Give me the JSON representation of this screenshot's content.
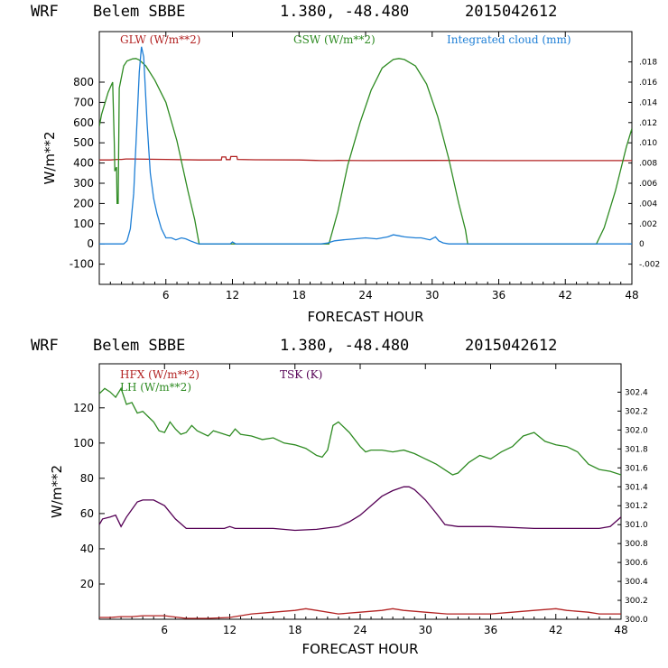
{
  "chart_data": [
    {
      "type": "line",
      "header": {
        "model": "WRF",
        "station": "Belem SBBE",
        "coords": "1.380, -48.480",
        "run": "2015042612"
      },
      "xlabel": "FORECAST HOUR",
      "ylabel": "W/m**2",
      "xlim": [
        0,
        48
      ],
      "ylim": [
        -200,
        1050
      ],
      "x_ticks": [
        "6",
        "12",
        "18",
        "24",
        "30",
        "36",
        "42",
        "48"
      ],
      "y_ticks": [
        "-100",
        "0",
        "100",
        "200",
        "300",
        "400",
        "500",
        "600",
        "700",
        "800"
      ],
      "y2lim": [
        -0.004,
        0.021
      ],
      "y2_ticks": [
        "-.002",
        "0",
        ".002",
        ".004",
        ".006",
        ".008",
        ".010",
        ".012",
        ".014",
        ".016",
        ".018"
      ],
      "series": [
        {
          "name": "GLW (W/m**2)",
          "color": "#b22222",
          "axis": "left",
          "points": [
            [
              0,
              415
            ],
            [
              1,
              415
            ],
            [
              1.6,
              418
            ],
            [
              2,
              418
            ],
            [
              2.4,
              420
            ],
            [
              3,
              420
            ],
            [
              6,
              418
            ],
            [
              9,
              415
            ],
            [
              10.5,
              415
            ],
            [
              11,
              415
            ],
            [
              11.05,
              430
            ],
            [
              11.4,
              430
            ],
            [
              11.45,
              417
            ],
            [
              11.8,
              417
            ],
            [
              11.85,
              432
            ],
            [
              12.4,
              432
            ],
            [
              12.45,
              418
            ],
            [
              14,
              416
            ],
            [
              18,
              415
            ],
            [
              19.5,
              413
            ],
            [
              20,
              412
            ],
            [
              21,
              412
            ],
            [
              21.5,
              413
            ],
            [
              24,
              412
            ],
            [
              30,
              413
            ],
            [
              36,
              412
            ],
            [
              42,
              412
            ],
            [
              48,
              412
            ]
          ]
        },
        {
          "name": "GSW (W/m**2)",
          "color": "#2e8b22",
          "axis": "left",
          "points": [
            [
              0,
              580
            ],
            [
              0.2,
              640
            ],
            [
              0.8,
              750
            ],
            [
              1.2,
              800
            ],
            [
              1.35,
              500
            ],
            [
              1.4,
              360
            ],
            [
              1.55,
              380
            ],
            [
              1.6,
              200
            ],
            [
              1.7,
              200
            ],
            [
              1.8,
              770
            ],
            [
              2.2,
              880
            ],
            [
              2.5,
              905
            ],
            [
              3,
              915
            ],
            [
              3.3,
              917
            ],
            [
              3.6,
              910
            ],
            [
              4.2,
              880
            ],
            [
              5,
              810
            ],
            [
              6,
              700
            ],
            [
              7,
              510
            ],
            [
              8,
              260
            ],
            [
              8.6,
              120
            ],
            [
              9,
              0
            ],
            [
              20.7,
              0
            ],
            [
              21.5,
              160
            ],
            [
              22.4,
              390
            ],
            [
              23.5,
              600
            ],
            [
              24.5,
              760
            ],
            [
              25.5,
              870
            ],
            [
              26.5,
              912
            ],
            [
              27,
              917
            ],
            [
              27.5,
              912
            ],
            [
              28.5,
              880
            ],
            [
              29.5,
              790
            ],
            [
              30.5,
              630
            ],
            [
              31.5,
              420
            ],
            [
              32.4,
              200
            ],
            [
              33,
              70
            ],
            [
              33.2,
              0
            ],
            [
              44.8,
              0
            ],
            [
              45.5,
              80
            ],
            [
              46.5,
              260
            ],
            [
              47.5,
              480
            ],
            [
              48,
              570
            ]
          ]
        },
        {
          "name": "Integrated cloud (mm)",
          "color": "#1e7fd6",
          "axis": "right",
          "points": [
            [
              0,
              0
            ],
            [
              1.5,
              0
            ],
            [
              2.2,
              0
            ],
            [
              2.5,
              0.0003
            ],
            [
              2.8,
              0.0015
            ],
            [
              3.1,
              0.005
            ],
            [
              3.35,
              0.011
            ],
            [
              3.6,
              0.017
            ],
            [
              3.8,
              0.0195
            ],
            [
              4,
              0.0185
            ],
            [
              4.3,
              0.012
            ],
            [
              4.6,
              0.007
            ],
            [
              4.9,
              0.0045
            ],
            [
              5.2,
              0.003
            ],
            [
              5.6,
              0.0015
            ],
            [
              6,
              0.0006
            ],
            [
              6.5,
              0.0006
            ],
            [
              6.9,
              0.0004
            ],
            [
              7.4,
              0.0006
            ],
            [
              7.8,
              0.0005
            ],
            [
              8.2,
              0.0003
            ],
            [
              8.8,
              5e-05
            ],
            [
              9,
              0
            ],
            [
              11.8,
              0
            ],
            [
              12,
              0.0002
            ],
            [
              12.3,
              0
            ],
            [
              20,
              0
            ],
            [
              20.6,
              0.0001
            ],
            [
              21.2,
              0.0003
            ],
            [
              22,
              0.0004
            ],
            [
              23,
              0.0005
            ],
            [
              24,
              0.0006
            ],
            [
              25,
              0.0005
            ],
            [
              26,
              0.0007
            ],
            [
              26.5,
              0.0009
            ],
            [
              27,
              0.0008
            ],
            [
              27.5,
              0.0007
            ],
            [
              28.5,
              0.0006
            ],
            [
              29,
              0.0006
            ],
            [
              29.8,
              0.0004
            ],
            [
              30.3,
              0.0007
            ],
            [
              30.6,
              0.0003
            ],
            [
              31,
              0.0001
            ],
            [
              31.5,
              0
            ],
            [
              48,
              0
            ]
          ]
        }
      ]
    },
    {
      "type": "line",
      "header": {
        "model": "WRF",
        "station": "Belem SBBE",
        "coords": "1.380, -48.480",
        "run": "2015042612"
      },
      "xlabel": "FORECAST HOUR",
      "ylabel": "W/m**2",
      "xlim": [
        0,
        48
      ],
      "ylim": [
        0,
        145
      ],
      "x_ticks": [
        "6",
        "12",
        "18",
        "24",
        "30",
        "36",
        "42",
        "48"
      ],
      "y_ticks": [
        "20",
        "40",
        "60",
        "80",
        "100",
        "120"
      ],
      "y2lim": [
        300.0,
        302.7
      ],
      "y2_ticks": [
        "300.0",
        "300.2",
        "300.4",
        "300.6",
        "300.8",
        "301.0",
        "301.2",
        "301.4",
        "301.6",
        "301.8",
        "302.0",
        "302.2",
        "302.4"
      ],
      "series": [
        {
          "name": "HFX (W/m**2)",
          "color": "#b22222",
          "axis": "left",
          "points": [
            [
              0,
              1
            ],
            [
              1,
              1
            ],
            [
              2,
              1.5
            ],
            [
              3,
              1.5
            ],
            [
              4,
              2
            ],
            [
              6,
              2
            ],
            [
              8,
              0.5
            ],
            [
              10,
              0.5
            ],
            [
              12,
              1
            ],
            [
              14,
              3
            ],
            [
              16,
              4
            ],
            [
              18,
              5
            ],
            [
              19,
              6
            ],
            [
              20,
              5
            ],
            [
              22,
              3
            ],
            [
              24,
              4
            ],
            [
              26,
              5
            ],
            [
              27,
              6
            ],
            [
              28,
              5
            ],
            [
              30,
              4
            ],
            [
              32,
              3
            ],
            [
              34,
              3
            ],
            [
              36,
              3
            ],
            [
              38,
              4
            ],
            [
              40,
              5
            ],
            [
              42,
              6
            ],
            [
              43,
              5
            ],
            [
              45,
              4
            ],
            [
              46,
              3
            ],
            [
              48,
              3
            ]
          ]
        },
        {
          "name": "LH (W/m**2)",
          "color": "#2e8b22",
          "axis": "left",
          "points": [
            [
              0,
              128
            ],
            [
              0.5,
              131
            ],
            [
              1,
              129
            ],
            [
              1.5,
              126
            ],
            [
              2,
              131
            ],
            [
              2.5,
              122
            ],
            [
              3,
              123
            ],
            [
              3.5,
              117
            ],
            [
              4,
              118
            ],
            [
              4.5,
              115
            ],
            [
              5,
              112
            ],
            [
              5.5,
              107
            ],
            [
              6,
              106
            ],
            [
              6.5,
              112
            ],
            [
              7,
              108
            ],
            [
              7.5,
              105
            ],
            [
              8,
              106
            ],
            [
              8.5,
              110
            ],
            [
              9,
              107
            ],
            [
              10,
              104
            ],
            [
              10.5,
              107
            ],
            [
              11,
              106
            ],
            [
              12,
              104
            ],
            [
              12.5,
              108
            ],
            [
              13,
              105
            ],
            [
              14,
              104
            ],
            [
              15,
              102
            ],
            [
              16,
              103
            ],
            [
              17,
              100
            ],
            [
              18,
              99
            ],
            [
              19,
              97
            ],
            [
              20,
              93
            ],
            [
              20.5,
              92
            ],
            [
              21,
              96
            ],
            [
              21.5,
              110
            ],
            [
              22,
              112
            ],
            [
              23,
              106
            ],
            [
              24,
              98
            ],
            [
              24.5,
              95
            ],
            [
              25,
              96
            ],
            [
              26,
              96
            ],
            [
              27,
              95
            ],
            [
              28,
              96
            ],
            [
              29,
              94
            ],
            [
              30,
              91
            ],
            [
              31,
              88
            ],
            [
              32,
              84
            ],
            [
              32.5,
              82
            ],
            [
              33,
              83
            ],
            [
              34,
              89
            ],
            [
              35,
              93
            ],
            [
              36,
              91
            ],
            [
              36.5,
              93
            ],
            [
              37,
              95
            ],
            [
              38,
              98
            ],
            [
              39,
              104
            ],
            [
              40,
              106
            ],
            [
              41,
              101
            ],
            [
              42,
              99
            ],
            [
              43,
              98
            ],
            [
              44,
              95
            ],
            [
              45,
              88
            ],
            [
              46,
              85
            ],
            [
              47,
              84
            ],
            [
              48,
              82
            ]
          ]
        },
        {
          "name": "TSK (K)",
          "color": "#550055",
          "axis": "right",
          "points": [
            [
              0,
              301.0
            ],
            [
              0.3,
              301.06
            ],
            [
              1,
              301.08
            ],
            [
              1.5,
              301.1
            ],
            [
              2,
              300.98
            ],
            [
              2.5,
              301.08
            ],
            [
              3,
              301.16
            ],
            [
              3.5,
              301.24
            ],
            [
              4,
              301.26
            ],
            [
              4.5,
              301.26
            ],
            [
              5,
              301.26
            ],
            [
              6,
              301.2
            ],
            [
              7,
              301.06
            ],
            [
              8,
              300.96
            ],
            [
              10,
              300.96
            ],
            [
              11.5,
              300.96
            ],
            [
              12,
              300.98
            ],
            [
              12.5,
              300.96
            ],
            [
              16,
              300.96
            ],
            [
              18,
              300.94
            ],
            [
              20,
              300.95
            ],
            [
              22,
              300.98
            ],
            [
              23,
              301.03
            ],
            [
              24,
              301.1
            ],
            [
              25,
              301.2
            ],
            [
              26,
              301.3
            ],
            [
              27,
              301.36
            ],
            [
              28,
              301.4
            ],
            [
              28.5,
              301.4
            ],
            [
              29,
              301.37
            ],
            [
              30,
              301.26
            ],
            [
              31,
              301.12
            ],
            [
              31.8,
              301.0
            ],
            [
              33,
              300.98
            ],
            [
              36,
              300.98
            ],
            [
              40,
              300.96
            ],
            [
              44,
              300.96
            ],
            [
              46,
              300.96
            ],
            [
              47,
              300.98
            ],
            [
              48,
              301.08
            ]
          ]
        }
      ]
    }
  ]
}
